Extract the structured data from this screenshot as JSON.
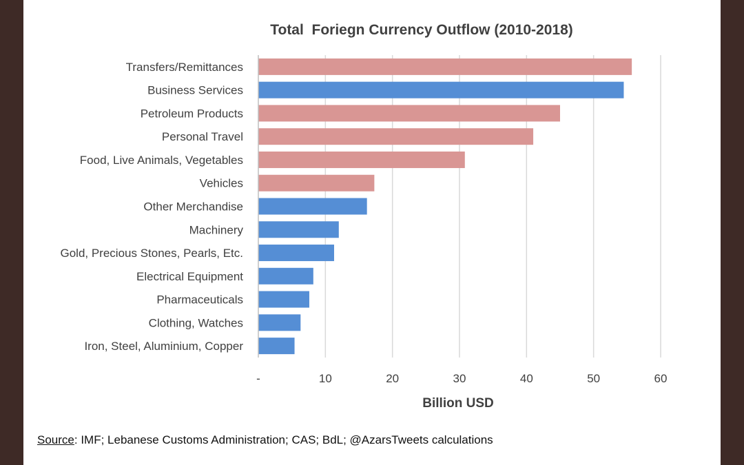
{
  "chart_data": {
    "type": "bar",
    "orientation": "horizontal",
    "title": "Total  Foriegn Currency Outflow (2010-2018)",
    "xlabel": "Billion USD",
    "ylabel": "",
    "xlim": [
      0,
      60
    ],
    "x_ticks": [
      0,
      10,
      20,
      30,
      40,
      50,
      60
    ],
    "x_tick_labels": [
      "-",
      "10",
      "20",
      "30",
      "40",
      "50",
      "60"
    ],
    "grid": "vertical",
    "legend": "none",
    "categories": [
      "Transfers/Remittances",
      "Business Services",
      "Petroleum Products",
      "Personal Travel",
      "Food, Live Animals, Vegetables",
      "Vehicles",
      "Other Merchandise",
      "Machinery",
      "Gold, Precious Stones, Pearls, Etc.",
      "Electrical Equipment",
      "Pharmaceuticals",
      "Clothing, Watches",
      "Iron, Steel, Aluminium, Copper"
    ],
    "values": [
      55.7,
      54.5,
      45,
      41,
      30.8,
      17.3,
      16.2,
      12,
      11.3,
      8.2,
      7.6,
      6.3,
      5.4
    ],
    "bar_colors": [
      "#d99694",
      "#558ed5",
      "#d99694",
      "#d99694",
      "#d99694",
      "#d99694",
      "#558ed5",
      "#558ed5",
      "#558ed5",
      "#558ed5",
      "#558ed5",
      "#558ed5",
      "#558ed5"
    ]
  },
  "colors": {
    "pink_bar": "#d99694",
    "blue_bar": "#558ed5",
    "gridline": "#d9d9d9",
    "axis_line": "#bfbfbf",
    "text": "#404040"
  },
  "footer": {
    "source_label": "Source",
    "source_text": ": IMF; Lebanese Customs Administration; CAS; BdL; @AzarsTweets calculations"
  }
}
